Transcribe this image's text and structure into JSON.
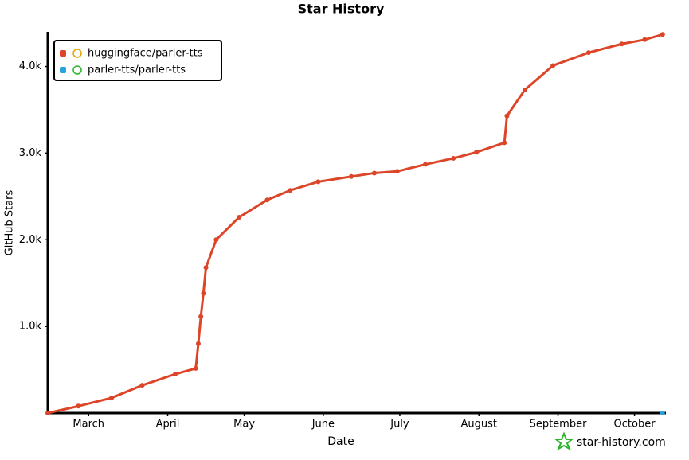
{
  "chart_data": {
    "type": "line",
    "title": "Star History",
    "x_label": "Date",
    "y_label": "GitHub Stars",
    "watermark": "star-history.com",
    "xlim": [
      0,
      242
    ],
    "xticks": [
      {
        "value": 16,
        "label": "March"
      },
      {
        "value": 47,
        "label": "April"
      },
      {
        "value": 77,
        "label": "May"
      },
      {
        "value": 108,
        "label": "June"
      },
      {
        "value": 138,
        "label": "July"
      },
      {
        "value": 169,
        "label": "August"
      },
      {
        "value": 200,
        "label": "September"
      },
      {
        "value": 230,
        "label": "October"
      }
    ],
    "ylim": [
      0,
      4400
    ],
    "yticks": [
      {
        "value": 1000,
        "label": "1.0k"
      },
      {
        "value": 2000,
        "label": "2.0k"
      },
      {
        "value": 3000,
        "label": "3.0k"
      },
      {
        "value": 4000,
        "label": "4.0k"
      }
    ],
    "legend": "top-left",
    "series": [
      {
        "name": "huggingface/parler-tts",
        "color": "#dd4528",
        "x": [
          0,
          12,
          25,
          37,
          50,
          58,
          59,
          60,
          61,
          62,
          66,
          75,
          86,
          95,
          106,
          119,
          128,
          137,
          148,
          159,
          168,
          179,
          180,
          187,
          198,
          212,
          225,
          234,
          241
        ],
        "values": [
          0,
          80,
          175,
          320,
          450,
          515,
          800,
          1115,
          1380,
          1680,
          2000,
          2260,
          2460,
          2570,
          2670,
          2730,
          2770,
          2790,
          2870,
          2940,
          3010,
          3120,
          3430,
          3730,
          4010,
          4160,
          4260,
          4310,
          4370
        ]
      },
      {
        "name": "parler-tts/parler-tts",
        "color": "#28a3dd",
        "x": [
          241
        ],
        "values": [
          0
        ]
      }
    ]
  }
}
